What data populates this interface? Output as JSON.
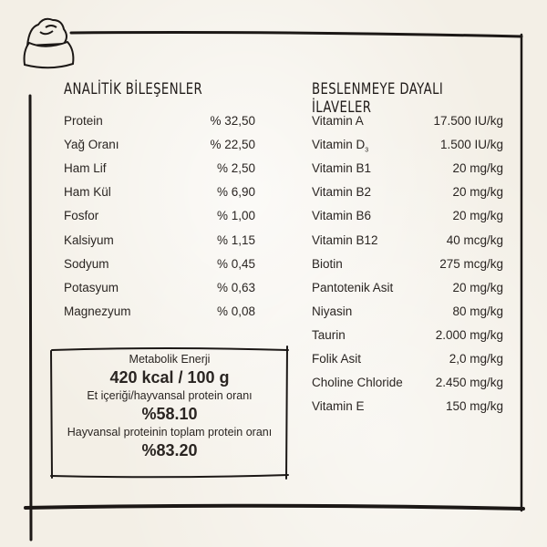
{
  "analytic": {
    "title": "ANALİTİK BİLEŞENLER",
    "rows": [
      {
        "label": "Protein",
        "value": "% 32,50"
      },
      {
        "label": "Yağ Oranı",
        "value": "% 22,50"
      },
      {
        "label": "Ham Lif",
        "value": "% 2,50"
      },
      {
        "label": "Ham Kül",
        "value": "% 6,90"
      },
      {
        "label": "Fosfor",
        "value": "% 1,00"
      },
      {
        "label": "Kalsiyum",
        "value": "% 1,15"
      },
      {
        "label": "Sodyum",
        "value": "% 0,45"
      },
      {
        "label": "Potasyum",
        "value": "% 0,63"
      },
      {
        "label": "Magnezyum",
        "value": "% 0,08"
      }
    ]
  },
  "additives": {
    "title": "BESLENMEYE DAYALI İLAVELER",
    "rows": [
      {
        "label": "Vitamin A",
        "value": "17.500 IU/kg"
      },
      {
        "label": "Vitamin D",
        "sub": "3",
        "value": "1.500 IU/kg"
      },
      {
        "label": "Vitamin B1",
        "value": "20 mg/kg"
      },
      {
        "label": "Vitamin B2",
        "value": "20 mg/kg"
      },
      {
        "label": "Vitamin B6",
        "value": "20 mg/kg"
      },
      {
        "label": "Vitamin B12",
        "value": "40 mcg/kg"
      },
      {
        "label": "Biotin",
        "value": "275 mcg/kg"
      },
      {
        "label": "Pantotenik Asit",
        "value": "20 mg/kg"
      },
      {
        "label": "Niyasin",
        "value": "80 mg/kg"
      },
      {
        "label": "Taurin",
        "value": "2.000 mg/kg"
      },
      {
        "label": "Folik Asit",
        "value": "2,0 mg/kg"
      },
      {
        "label": "Choline Chloride",
        "value": "2.450 mg/kg"
      },
      {
        "label": "Vitamin E",
        "value": "150 mg/kg"
      }
    ]
  },
  "energy": {
    "label": "Metabolik Enerji",
    "value": "420 kcal / 100 g",
    "meat_label": "Et içeriği/hayvansal protein oranı",
    "meat_value": "%58.10",
    "animal_label": "Hayvansal proteinin toplam protein oranı",
    "animal_value": "%83.20"
  },
  "icons": {
    "logo": "food-bowl-icon"
  },
  "colors": {
    "background": "#f3efe6",
    "ink": "#2a2522"
  }
}
